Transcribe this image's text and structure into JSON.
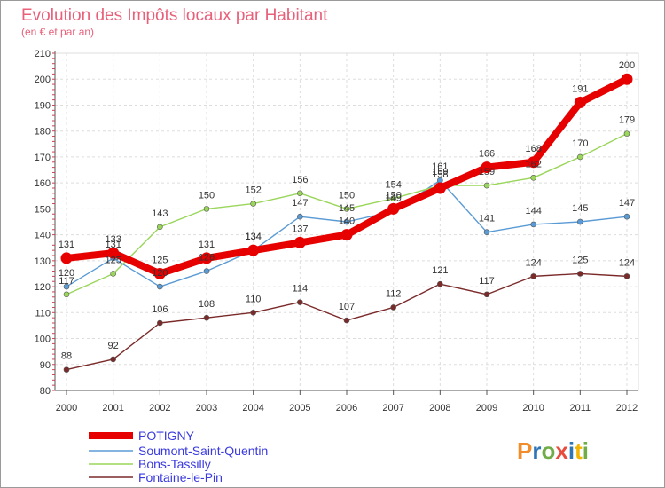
{
  "chart_data": {
    "type": "line",
    "title": "Evolution des Impôts locaux par Habitant",
    "subtitle": "(en € et par an)",
    "xlabel": "",
    "ylabel": "",
    "ylim": [
      80,
      210
    ],
    "yticks": [
      "80",
      "90",
      "100",
      "110",
      "120",
      "130",
      "140",
      "150",
      "160",
      "170",
      "180",
      "190",
      "200",
      "210"
    ],
    "grid": true,
    "legend_position": "bottom-left",
    "categories": [
      "2000",
      "2001",
      "2002",
      "2003",
      "2004",
      "2005",
      "2006",
      "2007",
      "2008",
      "2009",
      "2010",
      "2011",
      "2012"
    ],
    "series": [
      {
        "name": "POTIGNY",
        "color": "#e60000",
        "values": [
          131,
          133,
          125,
          131,
          134,
          137,
          140,
          150,
          158,
          166,
          168,
          191,
          200
        ]
      },
      {
        "name": "Soumont-Saint-Quentin",
        "color": "#5b9bd5",
        "values": [
          120,
          131,
          120,
          126,
          134,
          147,
          145,
          149,
          161,
          141,
          144,
          145,
          147
        ]
      },
      {
        "name": "Bons-Tassilly",
        "color": "#99d65a",
        "values": [
          117,
          125,
          143,
          150,
          152,
          156,
          150,
          154,
          159,
          159,
          162,
          170,
          179
        ]
      },
      {
        "name": "Fontaine-le-Pin",
        "color": "#7b2a2a",
        "values": [
          88,
          92,
          106,
          108,
          110,
          114,
          107,
          112,
          121,
          117,
          124,
          125,
          124
        ]
      }
    ]
  },
  "logo": {
    "text": "Proxiti"
  }
}
